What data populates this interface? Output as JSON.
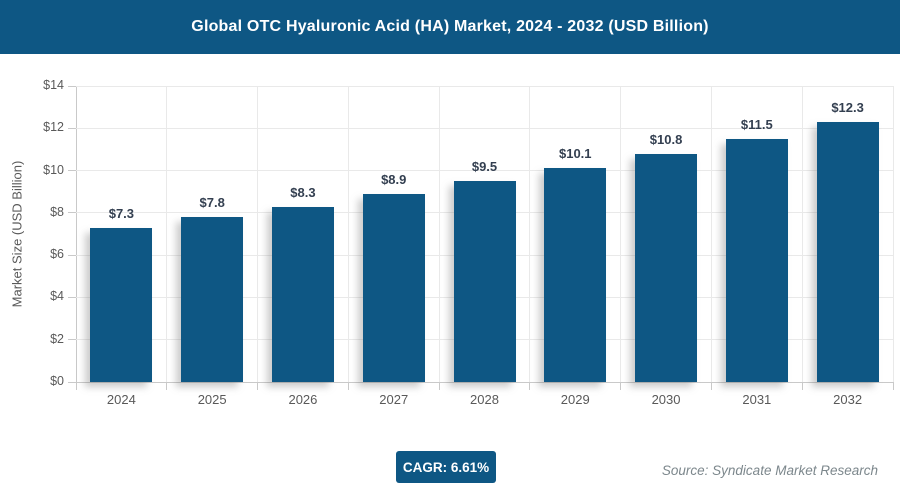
{
  "header": {
    "title": "Global OTC Hyaluronic Acid (HA) Market, 2024 - 2032 (USD Billion)",
    "bg_color": "#0E5784"
  },
  "chart_data": {
    "type": "bar",
    "title": "Global OTC Hyaluronic Acid (HA) Market, 2024 - 2032 (USD Billion)",
    "categories": [
      "2024",
      "2025",
      "2026",
      "2027",
      "2028",
      "2029",
      "2030",
      "2031",
      "2032"
    ],
    "values": [
      7.3,
      7.8,
      8.3,
      8.9,
      9.5,
      10.1,
      10.8,
      11.5,
      12.3
    ],
    "value_labels": [
      "$7.3",
      "$7.8",
      "$8.3",
      "$8.9",
      "$9.5",
      "$10.1",
      "$10.8",
      "$11.5",
      "$12.3"
    ],
    "xlabel": "",
    "ylabel": "Market Size (USD Billion)",
    "ylim": [
      0,
      14
    ],
    "ytick_step": 2,
    "ytick_labels": [
      "$0",
      "$2",
      "$4",
      "$6",
      "$8",
      "$10",
      "$12",
      "$14"
    ],
    "grid": true,
    "legend": "none",
    "bar_color": "#0E5784",
    "value_label_color": "#333F50",
    "axis_text_color": "#595959"
  },
  "footer": {
    "cagr_label": "CAGR: 6.61%",
    "source": "Source: Syndicate Market Research"
  }
}
